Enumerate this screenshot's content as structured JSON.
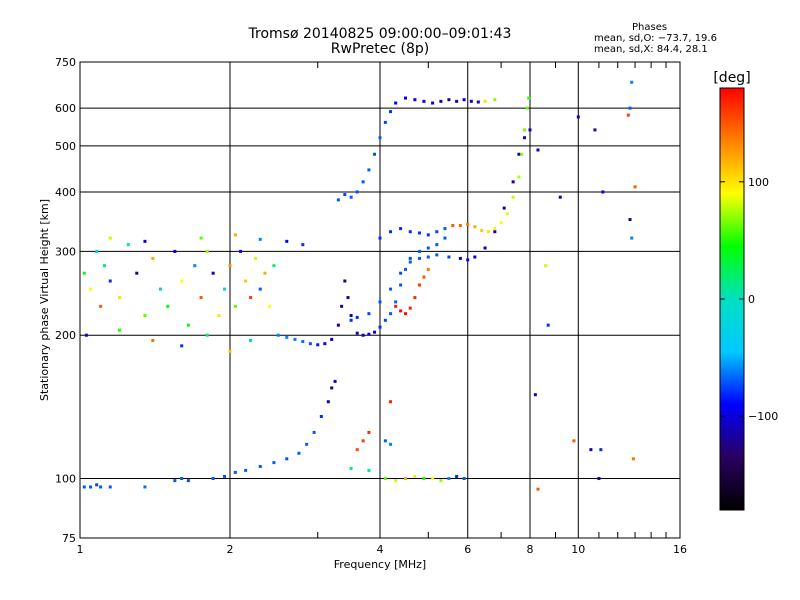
{
  "header": {
    "title": "Tromsø 20140825 09:00:00–09:01:43",
    "subtitle": "RwPretec (8p)"
  },
  "stats": {
    "heading": "Phases",
    "o_mode": "mean, sd,O: −73.7, 19.6",
    "x_mode": "mean, sd,X:  84.4, 28.1"
  },
  "chart_data": {
    "type": "scatter",
    "title": "Tromsø 20140825 09:00:00–09:01:43",
    "subtitle": "RwPretec (8p)",
    "xlabel": "Frequency [MHz]",
    "ylabel": "Stationary phase Virtual Height [km]",
    "x_scale": "log",
    "y_scale": "log",
    "xlim": [
      1,
      16
    ],
    "ylim": [
      75,
      750
    ],
    "x_ticks": [
      1,
      2,
      4,
      6,
      8,
      10,
      16
    ],
    "x_tick_labels": [
      "1",
      "2",
      "4",
      "6",
      "8",
      "10",
      "16"
    ],
    "y_ticks": [
      75,
      100,
      200,
      300,
      400,
      500,
      600,
      750
    ],
    "y_tick_labels": [
      "75",
      "100",
      "200",
      "300",
      "400",
      "500",
      "600",
      "750"
    ],
    "grid": true,
    "colorbar": {
      "label": "[deg]",
      "range": [
        -180,
        180
      ],
      "ticks": [
        100,
        0,
        -100
      ],
      "tick_labels": [
        "100",
        "0",
        "−100"
      ],
      "colors": [
        "#000000",
        "#2a0060",
        "#0000ff",
        "#00c8ff",
        "#00e0c0",
        "#00ff00",
        "#ffff00",
        "#ff8000",
        "#ff0000"
      ]
    },
    "series": [
      {
        "points": [
          [
            1.02,
            96,
            -70
          ],
          [
            1.05,
            96,
            -70
          ],
          [
            1.08,
            97,
            -75
          ],
          [
            1.1,
            96,
            -70
          ],
          [
            1.15,
            96,
            -70
          ],
          [
            1.35,
            96,
            -65
          ],
          [
            1.55,
            99,
            -70
          ],
          [
            1.6,
            100,
            -70
          ],
          [
            1.65,
            99,
            -72
          ],
          [
            1.85,
            100,
            -70
          ],
          [
            1.95,
            101,
            -72
          ],
          [
            2.05,
            103,
            -70
          ],
          [
            2.15,
            104,
            -68
          ],
          [
            2.3,
            106,
            -70
          ],
          [
            2.45,
            108,
            -70
          ],
          [
            2.6,
            110,
            -72
          ],
          [
            2.75,
            113,
            -70
          ],
          [
            2.85,
            118,
            -68
          ],
          [
            2.95,
            125,
            -70
          ],
          [
            3.05,
            135,
            -80
          ],
          [
            3.15,
            145,
            -110
          ],
          [
            3.2,
            155,
            -115
          ],
          [
            3.25,
            160,
            -110
          ]
        ]
      },
      {
        "points": [
          [
            2.5,
            200,
            -60
          ],
          [
            2.6,
            198,
            -60
          ],
          [
            2.7,
            196,
            -62
          ],
          [
            2.8,
            194,
            -65
          ],
          [
            2.9,
            192,
            -70
          ],
          [
            3.0,
            191,
            -85
          ],
          [
            3.1,
            192,
            -100
          ],
          [
            3.2,
            196,
            -100
          ],
          [
            3.3,
            210,
            -115
          ],
          [
            3.35,
            230,
            -120
          ],
          [
            3.4,
            260,
            -120
          ],
          [
            3.45,
            240,
            -120
          ],
          [
            3.5,
            220,
            -110
          ],
          [
            3.6,
            202,
            -110
          ],
          [
            3.7,
            200,
            -110
          ],
          [
            3.8,
            201,
            -110
          ],
          [
            3.9,
            203,
            -100
          ],
          [
            4.0,
            208,
            -80
          ],
          [
            4.1,
            215,
            -75
          ],
          [
            4.2,
            222,
            -70
          ],
          [
            4.3,
            235,
            -70
          ],
          [
            4.4,
            255,
            -72
          ],
          [
            4.5,
            275,
            -70
          ],
          [
            4.6,
            290,
            -72
          ],
          [
            4.8,
            300,
            -70
          ],
          [
            5.0,
            305,
            -70
          ],
          [
            5.2,
            310,
            -70
          ],
          [
            5.4,
            320,
            -72
          ]
        ]
      },
      {
        "points": [
          [
            3.5,
            215,
            -80
          ],
          [
            3.6,
            218,
            -80
          ],
          [
            3.8,
            222,
            -75
          ],
          [
            4.0,
            235,
            -72
          ],
          [
            4.2,
            250,
            -70
          ],
          [
            4.4,
            270,
            -72
          ],
          [
            4.6,
            285,
            -70
          ],
          [
            4.8,
            290,
            -70
          ],
          [
            5.0,
            292,
            -70
          ],
          [
            5.2,
            295,
            -70
          ],
          [
            5.5,
            292,
            -75
          ],
          [
            5.8,
            290,
            -90
          ],
          [
            6.0,
            288,
            -100
          ],
          [
            6.2,
            292,
            -110
          ],
          [
            6.5,
            305,
            -120
          ],
          [
            6.8,
            330,
            -120
          ],
          [
            7.1,
            370,
            -125
          ],
          [
            7.4,
            420,
            -120
          ],
          [
            7.6,
            480,
            -115
          ],
          [
            7.8,
            520,
            -110
          ],
          [
            8.0,
            540,
            -110
          ]
        ]
      },
      {
        "points": [
          [
            4.0,
            320,
            -80
          ],
          [
            4.2,
            330,
            -80
          ],
          [
            4.4,
            335,
            -82
          ],
          [
            4.6,
            330,
            -80
          ],
          [
            4.8,
            328,
            -78
          ],
          [
            5.0,
            325,
            -80
          ],
          [
            5.2,
            330,
            -75
          ],
          [
            5.4,
            335,
            -70
          ],
          [
            5.6,
            340,
            150
          ],
          [
            5.8,
            340,
            145
          ],
          [
            6.0,
            342,
            140
          ],
          [
            6.2,
            338,
            120
          ],
          [
            6.4,
            332,
            110
          ],
          [
            6.6,
            330,
            100
          ],
          [
            6.8,
            335,
            95
          ],
          [
            7.0,
            345,
            90
          ],
          [
            7.2,
            360,
            85
          ],
          [
            7.4,
            390,
            80
          ],
          [
            7.6,
            430,
            75
          ],
          [
            7.7,
            480,
            70
          ],
          [
            7.8,
            540,
            65
          ],
          [
            7.9,
            600,
            60
          ],
          [
            7.95,
            630,
            55
          ]
        ]
      },
      {
        "points": [
          [
            4.3,
            230,
            170
          ],
          [
            4.4,
            225,
            175
          ],
          [
            4.5,
            222,
            175
          ],
          [
            4.6,
            228,
            170
          ],
          [
            4.7,
            240,
            165
          ],
          [
            4.8,
            255,
            160
          ],
          [
            4.9,
            265,
            150
          ],
          [
            5.0,
            275,
            140
          ],
          [
            3.6,
            115,
            155
          ],
          [
            3.7,
            120,
            160
          ],
          [
            3.8,
            125,
            165
          ],
          [
            4.2,
            145,
            170
          ]
        ]
      },
      {
        "points": [
          [
            3.3,
            385,
            -70
          ],
          [
            3.4,
            395,
            -75
          ],
          [
            3.5,
            390,
            -70
          ],
          [
            3.6,
            400,
            -72
          ],
          [
            3.7,
            420,
            -70
          ],
          [
            3.8,
            445,
            -70
          ],
          [
            3.9,
            480,
            -72
          ],
          [
            4.0,
            520,
            -70
          ],
          [
            4.1,
            560,
            -75
          ],
          [
            4.2,
            590,
            -80
          ],
          [
            4.3,
            615,
            -90
          ],
          [
            4.5,
            630,
            -95
          ],
          [
            4.7,
            625,
            -90
          ],
          [
            4.9,
            620,
            -95
          ],
          [
            5.1,
            615,
            -100
          ],
          [
            5.3,
            620,
            -110
          ],
          [
            5.5,
            625,
            -115
          ],
          [
            5.7,
            620,
            -110
          ],
          [
            5.9,
            625,
            -105
          ],
          [
            6.1,
            620,
            -100
          ],
          [
            6.3,
            618,
            -110
          ],
          [
            6.5,
            620,
            80
          ],
          [
            6.8,
            625,
            70
          ]
        ]
      },
      {
        "points": [
          [
            1.02,
            270,
            40
          ],
          [
            1.05,
            250,
            90
          ],
          [
            1.08,
            300,
            -40
          ],
          [
            1.1,
            230,
            150
          ],
          [
            1.12,
            280,
            20
          ],
          [
            1.15,
            260,
            -80
          ],
          [
            1.2,
            240,
            100
          ],
          [
            1.25,
            310,
            10
          ],
          [
            1.3,
            270,
            -120
          ],
          [
            1.35,
            220,
            60
          ],
          [
            1.4,
            290,
            120
          ],
          [
            1.45,
            250,
            -30
          ],
          [
            1.5,
            230,
            40
          ],
          [
            1.55,
            300,
            -100
          ],
          [
            1.6,
            260,
            90
          ],
          [
            1.65,
            210,
            30
          ],
          [
            1.7,
            280,
            -60
          ],
          [
            1.75,
            240,
            150
          ],
          [
            1.8,
            300,
            70
          ],
          [
            1.85,
            270,
            -110
          ],
          [
            1.9,
            220,
            100
          ],
          [
            1.95,
            250,
            -20
          ],
          [
            2.0,
            280,
            130
          ],
          [
            2.05,
            230,
            60
          ],
          [
            2.1,
            300,
            -90
          ],
          [
            2.15,
            260,
            110
          ],
          [
            2.2,
            240,
            160
          ],
          [
            2.25,
            290,
            80
          ],
          [
            2.3,
            250,
            -70
          ],
          [
            2.35,
            270,
            120
          ],
          [
            2.4,
            230,
            90
          ],
          [
            2.45,
            280,
            20
          ],
          [
            1.03,
            200,
            -100
          ],
          [
            1.2,
            205,
            50
          ],
          [
            1.4,
            195,
            140
          ],
          [
            1.6,
            190,
            -80
          ],
          [
            1.8,
            200,
            30
          ],
          [
            2.0,
            185,
            110
          ],
          [
            2.2,
            195,
            -40
          ],
          [
            1.15,
            320,
            80
          ],
          [
            1.35,
            315,
            -100
          ],
          [
            1.75,
            320,
            60
          ],
          [
            2.05,
            325,
            120
          ],
          [
            2.3,
            318,
            -60
          ],
          [
            2.6,
            315,
            -90
          ],
          [
            2.8,
            310,
            -80
          ]
        ]
      },
      {
        "points": [
          [
            8.3,
            490,
            -110
          ],
          [
            9.2,
            390,
            -120
          ],
          [
            10.0,
            575,
            -100
          ],
          [
            10.8,
            540,
            -110
          ],
          [
            11.2,
            400,
            -90
          ],
          [
            12.6,
            580,
            160
          ],
          [
            12.7,
            600,
            -70
          ],
          [
            13.0,
            410,
            150
          ],
          [
            12.7,
            350,
            -130
          ],
          [
            12.8,
            320,
            -60
          ],
          [
            12.8,
            680,
            -60
          ],
          [
            8.6,
            280,
            80
          ],
          [
            8.7,
            210,
            -80
          ],
          [
            8.2,
            150,
            -110
          ],
          [
            9.8,
            120,
            150
          ],
          [
            10.6,
            115,
            -110
          ],
          [
            11.1,
            115,
            -80
          ],
          [
            11.0,
            100,
            -120
          ],
          [
            12.9,
            110,
            140
          ],
          [
            8.3,
            95,
            150
          ]
        ]
      },
      {
        "points": [
          [
            3.5,
            105,
            20
          ],
          [
            3.8,
            104,
            10
          ],
          [
            4.1,
            100,
            60
          ],
          [
            4.3,
            99,
            80
          ],
          [
            4.5,
            100,
            120
          ],
          [
            4.7,
            101,
            100
          ],
          [
            4.9,
            100,
            50
          ],
          [
            5.1,
            100,
            90
          ],
          [
            5.3,
            99,
            70
          ],
          [
            5.5,
            100,
            -60
          ],
          [
            5.7,
            101,
            -80
          ],
          [
            5.9,
            100,
            -70
          ],
          [
            4.1,
            120,
            -70
          ],
          [
            4.2,
            118,
            -60
          ]
        ]
      }
    ]
  }
}
